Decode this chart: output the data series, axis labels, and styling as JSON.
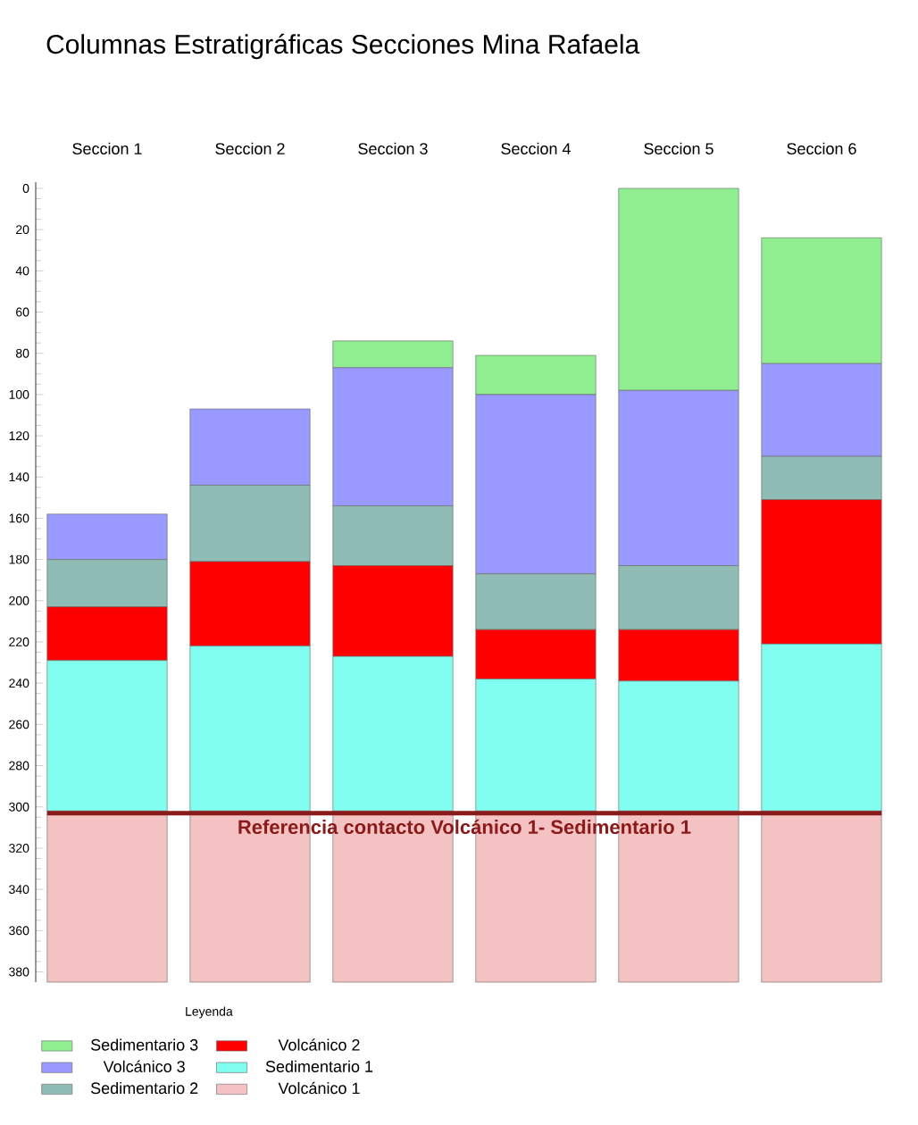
{
  "chart_data": {
    "type": "bar",
    "title": "Columnas Estratigráficas Secciones Mina Rafaela",
    "categories": [
      "Seccion 1",
      "Seccion 2",
      "Seccion 3",
      "Seccion 4",
      "Seccion 5",
      "Seccion 6"
    ],
    "series": [
      {
        "name": "Sedimentario 3",
        "color": "#90ee90",
        "base": [
          null,
          null,
          74,
          81,
          0,
          24
        ],
        "values": [
          null,
          null,
          13,
          19,
          98,
          61
        ]
      },
      {
        "name": "Volcánico 3",
        "color": "#9999ff",
        "base": [
          158,
          107,
          87,
          100,
          98,
          85
        ],
        "values": [
          22,
          37,
          67,
          87,
          85,
          45
        ]
      },
      {
        "name": "Sedimentario 2",
        "color": "#8fbcb4",
        "base": [
          180,
          144,
          154,
          187,
          183,
          130
        ],
        "values": [
          23,
          37,
          29,
          27,
          31,
          21
        ]
      },
      {
        "name": "Volcánico 2",
        "color": "#ff0000",
        "base": [
          203,
          181,
          183,
          214,
          214,
          151
        ],
        "values": [
          26,
          41,
          44,
          24,
          25,
          70
        ]
      },
      {
        "name": "Sedimentario 1",
        "color": "#80fff0",
        "base": [
          229,
          222,
          227,
          238,
          239,
          221
        ],
        "values": [
          73,
          80,
          75,
          64,
          63,
          81
        ]
      },
      {
        "name": "Volcánico 1",
        "color": "#f4c2c2",
        "base": [
          302,
          302,
          302,
          302,
          302,
          302
        ],
        "values": [
          83,
          83,
          83,
          83,
          83,
          83
        ]
      }
    ],
    "ylim": [
      385,
      -3
    ],
    "yticks": [
      0,
      20,
      40,
      60,
      80,
      100,
      120,
      140,
      160,
      180,
      200,
      220,
      240,
      260,
      280,
      300,
      320,
      340,
      360,
      380
    ],
    "ref_lines": [
      {
        "axis": "y",
        "value": 303,
        "label": "Referencia contacto Volcánico 1- Sedimentario 1",
        "color": "#8b1a1a"
      }
    ],
    "legend": "bottom left",
    "legend_title": "Leyenda"
  }
}
